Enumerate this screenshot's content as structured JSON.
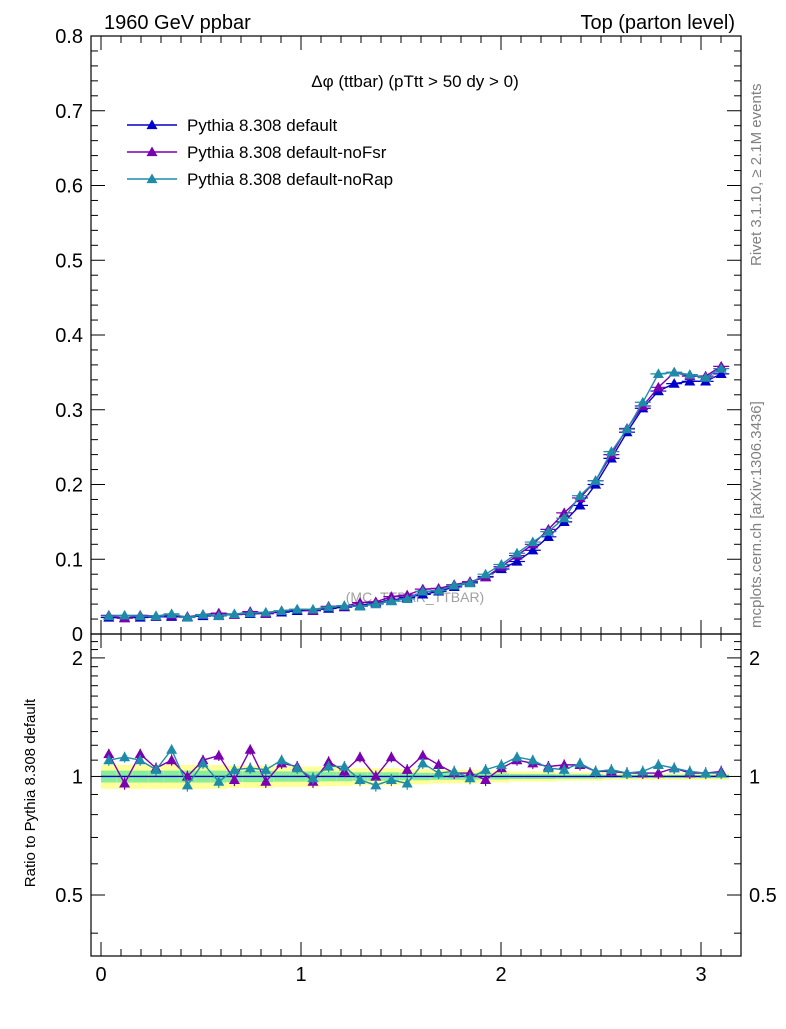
{
  "header": {
    "left": "1960 GeV ppbar",
    "right": "Top (parton level)"
  },
  "side_labels": {
    "rivet": "Rivet 3.1.10, ≥ 2.1M events",
    "mcplots": "mcplots.cern.ch [arXiv:1306.3436]"
  },
  "watermark": "(MC_TTBAR_TTBAR)",
  "colors": {
    "default": "#0000cc",
    "noFsr": "#7a00b0",
    "noRap": "#1e8ca8",
    "band_outer": "#ffff99",
    "band_inner": "#88ee99"
  },
  "chart_data": [
    {
      "type": "line",
      "title": "Δφ (ttbar) (pTtt > 50 dy > 0)",
      "xlim": [
        -0.05,
        3.2
      ],
      "ylim": [
        0,
        0.8
      ],
      "yticks": [
        "0",
        "0.1",
        "0.2",
        "0.3",
        "0.4",
        "0.5",
        "0.6",
        "0.7",
        "0.8"
      ],
      "legend_position": "top-left",
      "x": [
        0.039,
        0.118,
        0.196,
        0.275,
        0.353,
        0.432,
        0.51,
        0.589,
        0.667,
        0.746,
        0.824,
        0.903,
        0.981,
        1.06,
        1.138,
        1.217,
        1.295,
        1.374,
        1.452,
        1.531,
        1.609,
        1.688,
        1.766,
        1.845,
        1.923,
        2.002,
        2.08,
        2.159,
        2.237,
        2.316,
        2.395,
        2.473,
        2.552,
        2.63,
        2.709,
        2.787,
        2.866,
        2.944,
        3.023,
        3.101
      ],
      "series": [
        {
          "name": "Pythia 8.308 default",
          "values": [
            0.022,
            0.022,
            0.022,
            0.023,
            0.023,
            0.023,
            0.024,
            0.025,
            0.026,
            0.027,
            0.028,
            0.029,
            0.031,
            0.032,
            0.034,
            0.036,
            0.038,
            0.042,
            0.045,
            0.049,
            0.053,
            0.057,
            0.063,
            0.069,
            0.077,
            0.087,
            0.097,
            0.112,
            0.13,
            0.15,
            0.172,
            0.2,
            0.235,
            0.27,
            0.302,
            0.325,
            0.335,
            0.338,
            0.338,
            0.348
          ]
        },
        {
          "name": "Pythia 8.308 default-noFsr",
          "values": [
            0.025,
            0.021,
            0.025,
            0.024,
            0.025,
            0.023,
            0.026,
            0.028,
            0.026,
            0.03,
            0.027,
            0.031,
            0.033,
            0.031,
            0.037,
            0.037,
            0.042,
            0.043,
            0.05,
            0.052,
            0.06,
            0.061,
            0.066,
            0.07,
            0.076,
            0.09,
            0.105,
            0.12,
            0.14,
            0.162,
            0.182,
            0.205,
            0.24,
            0.275,
            0.305,
            0.33,
            0.35,
            0.345,
            0.345,
            0.358
          ]
        },
        {
          "name": "Pythia 8.308 default-noRap",
          "values": [
            0.024,
            0.025,
            0.024,
            0.024,
            0.027,
            0.022,
            0.026,
            0.024,
            0.027,
            0.028,
            0.029,
            0.031,
            0.033,
            0.033,
            0.036,
            0.038,
            0.037,
            0.04,
            0.044,
            0.047,
            0.057,
            0.058,
            0.065,
            0.068,
            0.08,
            0.093,
            0.108,
            0.123,
            0.137,
            0.155,
            0.185,
            0.205,
            0.244,
            0.274,
            0.31,
            0.348,
            0.35,
            0.347,
            0.343,
            0.355
          ]
        }
      ]
    },
    {
      "type": "line",
      "ylabel": "Ratio to Pythia 8.308 default",
      "xlim": [
        -0.05,
        3.2
      ],
      "ylim": [
        0.35,
        2.3
      ],
      "yscale": "log",
      "xticks": [
        "0",
        "1",
        "2",
        "3"
      ],
      "yticks": [
        "0.5",
        "1",
        "2"
      ],
      "reference_line": 1,
      "band_outer_halfwidth": [
        0.07,
        0.07,
        0.07,
        0.07,
        0.07,
        0.07,
        0.07,
        0.07,
        0.065,
        0.065,
        0.065,
        0.06,
        0.06,
        0.06,
        0.055,
        0.055,
        0.05,
        0.05,
        0.05,
        0.045,
        0.045,
        0.04,
        0.04,
        0.04,
        0.035,
        0.035,
        0.03,
        0.03,
        0.03,
        0.025,
        0.025,
        0.025,
        0.02,
        0.02,
        0.02,
        0.02,
        0.02,
        0.02,
        0.02,
        0.02
      ],
      "band_inner_halfwidth": [
        0.035,
        0.035,
        0.035,
        0.035,
        0.035,
        0.035,
        0.035,
        0.035,
        0.033,
        0.033,
        0.033,
        0.03,
        0.03,
        0.03,
        0.028,
        0.028,
        0.025,
        0.025,
        0.025,
        0.022,
        0.022,
        0.02,
        0.02,
        0.02,
        0.018,
        0.018,
        0.015,
        0.015,
        0.015,
        0.013,
        0.013,
        0.013,
        0.01,
        0.01,
        0.01,
        0.01,
        0.01,
        0.01,
        0.01,
        0.01
      ],
      "series": [
        {
          "name": "Pythia 8.308 default",
          "values": [
            1,
            1,
            1,
            1,
            1,
            1,
            1,
            1,
            1,
            1,
            1,
            1,
            1,
            1,
            1,
            1,
            1,
            1,
            1,
            1,
            1,
            1,
            1,
            1,
            1,
            1,
            1,
            1,
            1,
            1,
            1,
            1,
            1,
            1,
            1,
            1,
            1,
            1,
            1,
            1
          ]
        },
        {
          "name": "Pythia 8.308 default-noFsr",
          "values": [
            1.14,
            0.96,
            1.14,
            1.05,
            1.1,
            1.0,
            1.1,
            1.13,
            0.98,
            1.17,
            0.97,
            1.08,
            1.06,
            0.97,
            1.09,
            1.03,
            1.12,
            1.0,
            1.12,
            1.04,
            1.13,
            1.07,
            1.02,
            1.02,
            0.98,
            1.05,
            1.1,
            1.08,
            1.06,
            1.07,
            1.07,
            1.03,
            1.03,
            1.02,
            1.02,
            1.02,
            1.05,
            1.02,
            1.02,
            1.03
          ]
        },
        {
          "name": "Pythia 8.308 default-noRap",
          "values": [
            1.1,
            1.12,
            1.1,
            1.04,
            1.17,
            0.95,
            1.08,
            0.97,
            1.04,
            1.05,
            1.04,
            1.1,
            1.05,
            0.99,
            1.06,
            1.06,
            0.98,
            0.95,
            0.98,
            0.96,
            1.08,
            1.02,
            1.03,
            0.99,
            1.04,
            1.07,
            1.12,
            1.1,
            1.05,
            1.04,
            1.08,
            1.03,
            1.04,
            1.02,
            1.03,
            1.07,
            1.05,
            1.03,
            1.02,
            1.02
          ]
        }
      ]
    }
  ]
}
